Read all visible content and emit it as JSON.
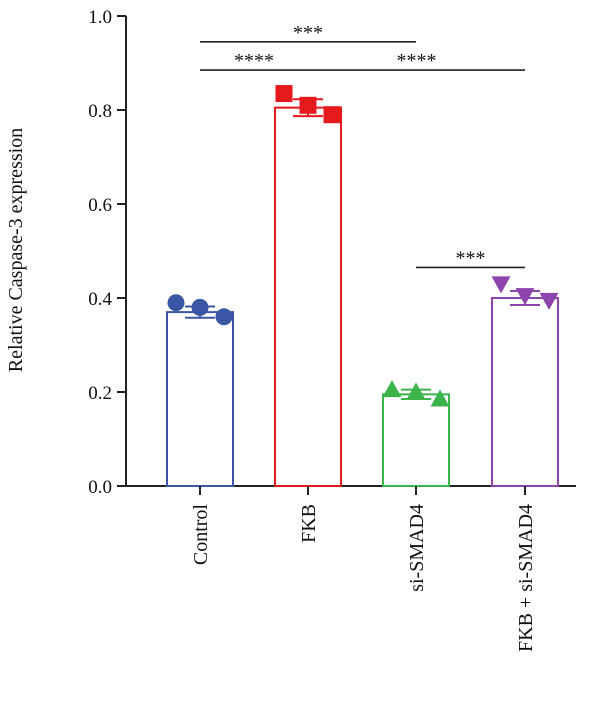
{
  "chart_data": {
    "type": "bar",
    "title": "",
    "xlabel": "",
    "ylabel": "Relative Caspase-3 expression",
    "ylim": [
      0,
      1.0
    ],
    "yticks": [
      0.0,
      0.2,
      0.4,
      0.6,
      0.8,
      1.0
    ],
    "ytick_labels": [
      "0.0",
      "0.2",
      "0.4",
      "0.6",
      "0.8",
      "1.0"
    ],
    "grid": false,
    "legend": "none",
    "categories": [
      "Control",
      "FKB",
      "si-SMAD4",
      "FKB + si-SMAD4"
    ],
    "values": [
      0.37,
      0.805,
      0.195,
      0.4
    ],
    "errors": [
      0.012,
      0.018,
      0.01,
      0.015
    ],
    "colors": [
      "#3a55a4",
      "#e41a1c",
      "#3cb44b",
      "#8e44ad"
    ],
    "markers": [
      "circle",
      "square",
      "triangle-up",
      "triangle-down"
    ],
    "points": [
      [
        0.39,
        0.38,
        0.36
      ],
      [
        0.835,
        0.81,
        0.79
      ],
      [
        0.205,
        0.2,
        0.185
      ],
      [
        0.43,
        0.405,
        0.395
      ]
    ],
    "significance": [
      {
        "from": 0,
        "to": 2,
        "label": "***",
        "y": 0.945
      },
      {
        "from": 0,
        "to": 1,
        "label": "****",
        "y": 0.885
      },
      {
        "from": 1,
        "to": 3,
        "label": "****",
        "y": 0.885
      },
      {
        "from": 2,
        "to": 3,
        "label": "***",
        "y": 0.465
      }
    ]
  }
}
